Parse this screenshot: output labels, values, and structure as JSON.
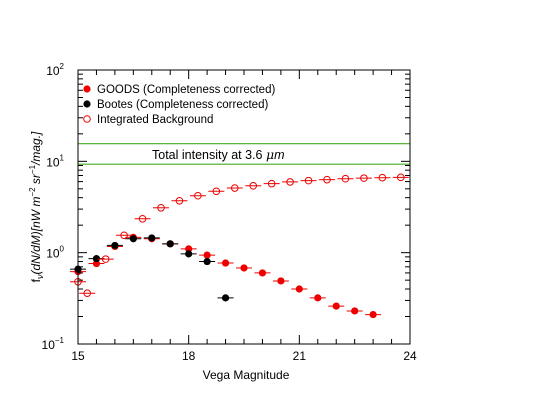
{
  "chart_data": {
    "type": "scatter",
    "xlabel": "Vega Magnitude",
    "ylabel": "f_ν(dN/dM)[nW m^-2 sr^-1/mag.]",
    "ylabel_parts": {
      "f": "f",
      "nu": "ν",
      "mid": "(dN/dM)[nW m",
      "exp1": "−2",
      "sr": " sr",
      "exp2": "−1",
      "tail": "/mag.]"
    },
    "xlim": [
      15,
      24
    ],
    "ylim": [
      0.1,
      100
    ],
    "yscale": "log",
    "x_ticks": [
      "15",
      "18",
      "21",
      "24"
    ],
    "y_ticks": [
      {
        "base": "10",
        "exp": "−1"
      },
      {
        "base": "10",
        "exp": "0"
      },
      {
        "base": "10",
        "exp": "1"
      },
      {
        "base": "10",
        "exp": "2"
      }
    ],
    "legend": {
      "placement": "top-left",
      "entries": [
        "GOODS (Completeness corrected)",
        "Bootes (Completeness corrected)",
        "Integrated Background"
      ]
    },
    "annotation": {
      "prefix": "Total intensity at 3.6 ",
      "mu": "μ",
      "unit": "m",
      "band": [
        9.3,
        15.6
      ]
    },
    "series": [
      {
        "name": "GOODS (Completeness corrected)",
        "color": "#ee0000",
        "marker": "filled-circle",
        "x": [
          15.0,
          15.5,
          16.0,
          16.5,
          17.0,
          17.5,
          18.0,
          18.5,
          19.0,
          19.5,
          20.0,
          20.5,
          21.0,
          21.5,
          22.0,
          22.5,
          23.0
        ],
        "y": [
          0.62,
          0.76,
          1.17,
          1.47,
          1.42,
          1.25,
          1.1,
          0.94,
          0.77,
          0.68,
          0.6,
          0.49,
          0.4,
          0.32,
          0.26,
          0.23,
          0.21
        ]
      },
      {
        "name": "Bootes (Completeness corrected)",
        "color": "#000000",
        "marker": "filled-circle",
        "x": [
          15.0,
          15.5,
          16.0,
          16.5,
          17.0,
          17.5,
          18.0,
          18.5,
          19.0
        ],
        "y": [
          0.66,
          0.86,
          1.2,
          1.42,
          1.45,
          1.25,
          0.97,
          0.8,
          0.32
        ]
      },
      {
        "name": "Integrated Background",
        "color": "#ee0000",
        "marker": "open-circle",
        "x": [
          15.0,
          15.25,
          15.75,
          16.25,
          16.75,
          17.25,
          17.75,
          18.25,
          18.75,
          19.25,
          19.75,
          20.25,
          20.75,
          21.25,
          21.75,
          22.25,
          22.75,
          23.25,
          23.75
        ],
        "y": [
          0.48,
          0.36,
          0.85,
          1.55,
          2.35,
          3.1,
          3.7,
          4.2,
          4.7,
          5.1,
          5.4,
          5.7,
          5.95,
          6.15,
          6.3,
          6.45,
          6.55,
          6.62,
          6.68
        ]
      }
    ]
  }
}
